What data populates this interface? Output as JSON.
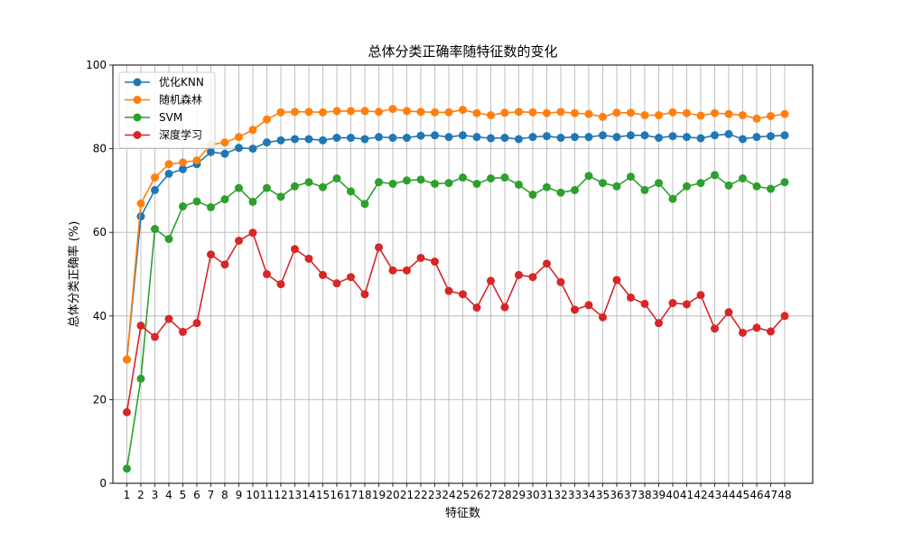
{
  "chart_data": {
    "type": "line",
    "title": "总体分类正确率随特征数的变化",
    "xlabel": "特征数",
    "ylabel": "总体分类正确率 (%)",
    "xlim": [
      0,
      50
    ],
    "ylim": [
      0,
      100
    ],
    "yticks": [
      0,
      20,
      40,
      60,
      80,
      100
    ],
    "grid": true,
    "legend_position": "top-left",
    "x": [
      1,
      2,
      3,
      4,
      5,
      6,
      7,
      8,
      9,
      10,
      11,
      12,
      13,
      14,
      15,
      16,
      17,
      18,
      19,
      20,
      21,
      22,
      23,
      24,
      25,
      26,
      27,
      28,
      29,
      30,
      31,
      32,
      33,
      34,
      35,
      36,
      37,
      38,
      39,
      40,
      41,
      42,
      43,
      44,
      45,
      46,
      47,
      48
    ],
    "series": [
      {
        "name": "优化KNN",
        "color": "#1f77b4",
        "values": [
          29.6,
          63.8,
          70.1,
          74.0,
          75.1,
          76.3,
          79.2,
          78.8,
          80.2,
          80.0,
          81.5,
          82.0,
          82.3,
          82.3,
          82.0,
          82.6,
          82.6,
          82.3,
          82.8,
          82.6,
          82.6,
          83.1,
          83.2,
          82.8,
          83.2,
          82.8,
          82.5,
          82.6,
          82.3,
          82.8,
          83.0,
          82.6,
          82.8,
          82.8,
          83.2,
          82.8,
          83.2,
          83.2,
          82.6,
          83.0,
          82.8,
          82.5,
          83.2,
          83.5,
          82.3,
          82.8,
          83.0,
          83.2
        ]
      },
      {
        "name": "随机森林",
        "color": "#ff7f0e",
        "values": [
          29.6,
          66.9,
          73.1,
          76.3,
          76.7,
          77.2,
          81.0,
          81.5,
          82.8,
          84.5,
          87.0,
          88.7,
          88.8,
          88.8,
          88.7,
          89.0,
          89.0,
          89.0,
          88.8,
          89.5,
          89.0,
          88.8,
          88.7,
          88.7,
          89.3,
          88.5,
          88.0,
          88.6,
          88.8,
          88.7,
          88.5,
          88.8,
          88.5,
          88.3,
          87.6,
          88.6,
          88.6,
          88.0,
          88.0,
          88.7,
          88.5,
          87.9,
          88.5,
          88.3,
          88.0,
          87.2,
          87.8,
          88.3
        ]
      },
      {
        "name": "SVM",
        "color": "#2ca02c",
        "values": [
          3.5,
          25.0,
          60.8,
          58.4,
          66.2,
          67.4,
          66.0,
          67.9,
          70.6,
          67.3,
          70.6,
          68.5,
          71.0,
          72.0,
          70.8,
          72.9,
          69.8,
          66.8,
          72.0,
          71.6,
          72.4,
          72.6,
          71.6,
          71.8,
          73.1,
          71.6,
          72.9,
          73.1,
          71.4,
          69.0,
          70.8,
          69.5,
          70.1,
          73.5,
          71.8,
          71.0,
          73.3,
          70.1,
          71.8,
          68.0,
          71.0,
          71.8,
          73.7,
          71.2,
          72.9,
          71.0,
          70.4,
          72.0
        ]
      },
      {
        "name": "深度学习",
        "color": "#d62728",
        "values": [
          17.0,
          37.7,
          35.0,
          39.3,
          36.2,
          38.3,
          54.7,
          52.3,
          58.0,
          59.9,
          50.0,
          47.6,
          56.0,
          53.7,
          49.8,
          47.8,
          49.3,
          45.2,
          56.4,
          50.9,
          50.9,
          53.9,
          53.0,
          46.0,
          45.2,
          42.0,
          48.4,
          42.1,
          49.8,
          49.3,
          52.5,
          48.1,
          41.5,
          42.6,
          39.7,
          48.6,
          44.4,
          42.9,
          38.3,
          43.1,
          42.8,
          45.0,
          37.0,
          40.9,
          36.0,
          37.2,
          36.3,
          40.0
        ]
      }
    ]
  }
}
